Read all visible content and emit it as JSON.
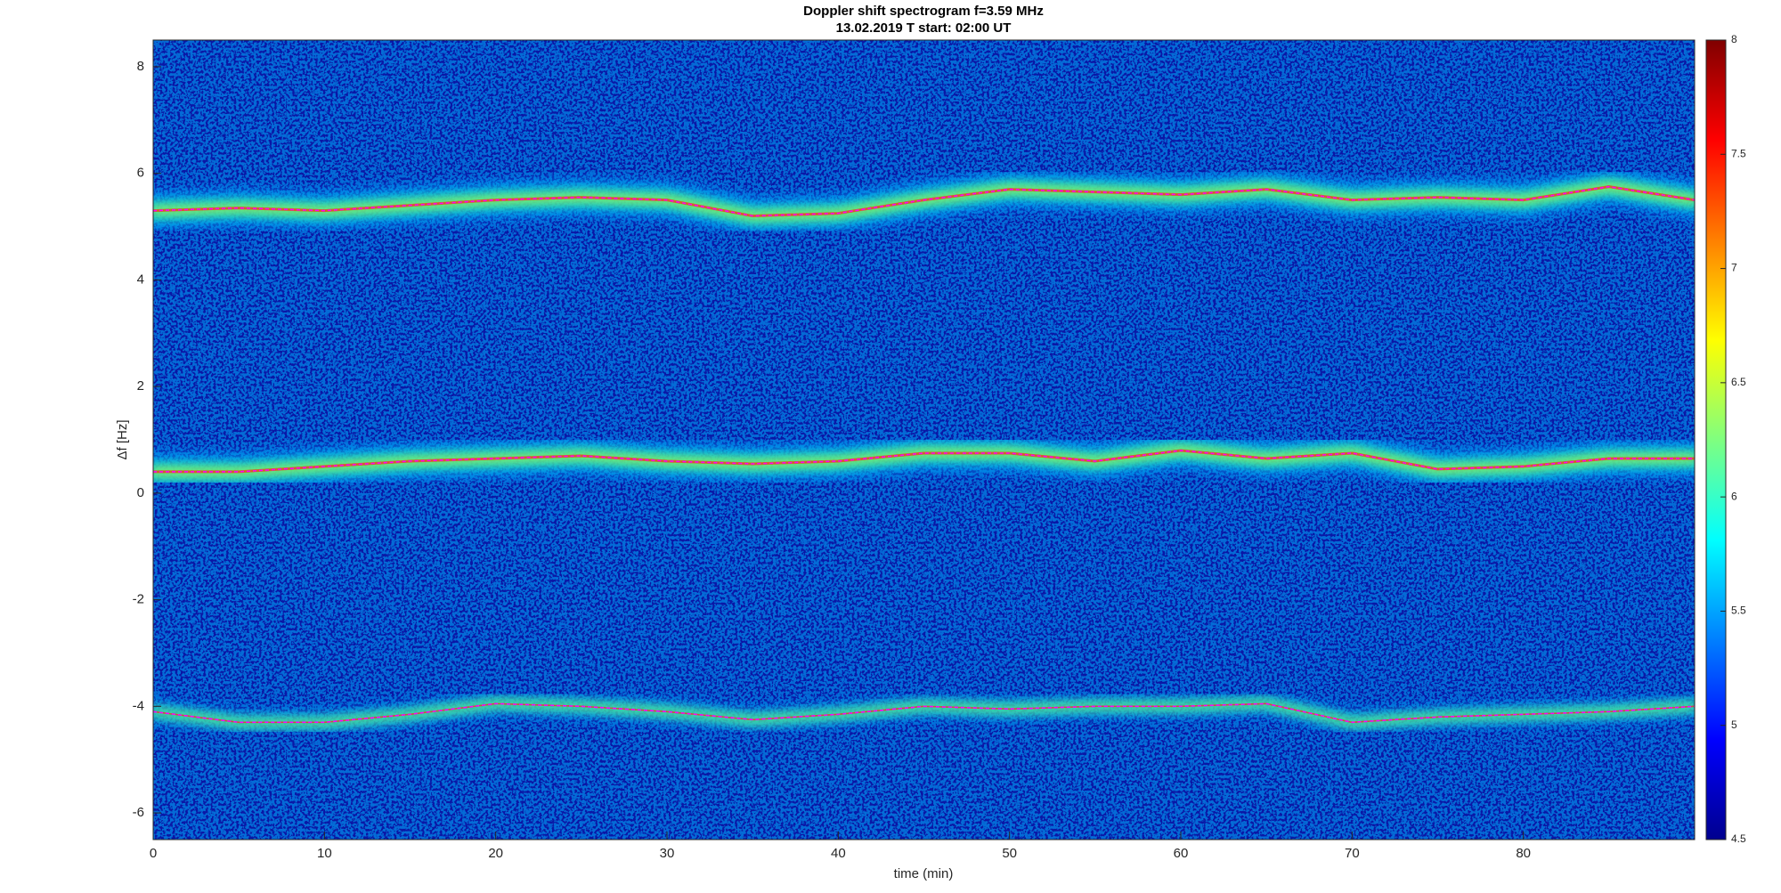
{
  "chart_data": {
    "type": "spectrogram",
    "title": "Doppler shift spectrogram f=3.59 MHz",
    "subtitle": "13.02.2019   T start: 02:00 UT",
    "xlabel": "time (min)",
    "ylabel": "Δf [Hz]",
    "x": [
      0,
      5,
      10,
      15,
      20,
      25,
      30,
      35,
      40,
      45,
      50,
      55,
      60,
      65,
      70,
      75,
      80,
      85,
      90
    ],
    "series": [
      {
        "color": "#ff00ff",
        "values": [
          5.3,
          5.35,
          5.3,
          5.4,
          5.5,
          5.55,
          5.5,
          5.2,
          5.25,
          5.5,
          5.7,
          5.65,
          5.6,
          5.7,
          5.5,
          5.55,
          5.5,
          5.75,
          5.5
        ]
      },
      {
        "color": "#ff00ff",
        "values": [
          0.4,
          0.4,
          0.5,
          0.6,
          0.65,
          0.7,
          0.6,
          0.55,
          0.6,
          0.75,
          0.75,
          0.6,
          0.8,
          0.65,
          0.75,
          0.45,
          0.5,
          0.65,
          0.65
        ]
      },
      {
        "color": "#ff00ff",
        "values": [
          -4.1,
          -4.3,
          -4.3,
          -4.15,
          -3.95,
          -4.0,
          -4.1,
          -4.25,
          -4.15,
          -4.0,
          -4.05,
          -4.0,
          -4.0,
          -3.95,
          -4.3,
          -4.2,
          -4.15,
          -4.1,
          -4.0
        ]
      }
    ],
    "xlim": [
      0,
      90
    ],
    "xticks": [
      0,
      10,
      20,
      30,
      40,
      50,
      60,
      70,
      80
    ],
    "ylim": [
      -6.5,
      8.5
    ],
    "yticks": [
      -6,
      -4,
      -2,
      0,
      2,
      4,
      6,
      8
    ],
    "colormap": "jet",
    "clim": [
      4.5,
      8
    ],
    "cticks": [
      4.5,
      5,
      5.5,
      6,
      6.5,
      7,
      7.5,
      8
    ]
  }
}
